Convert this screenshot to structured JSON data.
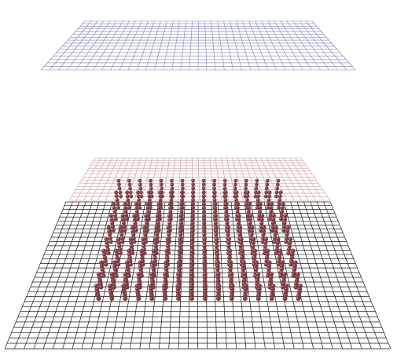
{
  "scene": {
    "colors": {
      "background": "#ffffff",
      "top_plane": "#7f82b8",
      "middle_plane": "#c99a9a",
      "bottom_plane": "#1a1a1a",
      "bead": "#7a3b42",
      "bead_highlight": "#c98a8f",
      "stem": "#5a2a30"
    },
    "planes": [
      {
        "name": "top-grid-plane",
        "grid_cols": 36,
        "grid_rows": 16
      },
      {
        "name": "middle-grid-plane",
        "grid_cols": 36,
        "grid_rows": 14
      },
      {
        "name": "bottom-grid-plane",
        "grid_cols": 40,
        "grid_rows": 32
      }
    ],
    "bead_array": {
      "columns": 16,
      "rows": 10
    }
  }
}
